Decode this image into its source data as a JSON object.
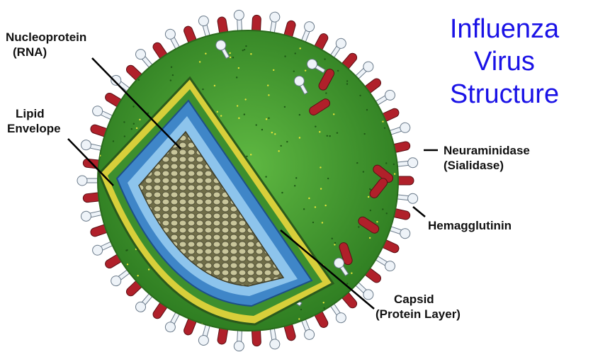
{
  "title": {
    "line1": "Influenza",
    "line2": "Virus",
    "line3": "Structure"
  },
  "labels": {
    "nucleoprotein": {
      "line1": "Nucleoprotein",
      "line2": "(RNA)"
    },
    "lipid_envelope": {
      "line1": "Lipid",
      "line2": "Envelope"
    },
    "neuraminidase": {
      "line1": "Neuraminidase",
      "line2": "(Sialidase)"
    },
    "hemagglutinin": {
      "line1": "Hemagglutinin"
    },
    "capsid": {
      "line1": "Capsid",
      "line2": "(Protein Layer)"
    }
  },
  "colors": {
    "title": "#1a12e6",
    "envelope_green": "#3f9a2c",
    "hemagglutinin_red": "#b0202a",
    "neuraminidase_white": "#eef3f8",
    "capsid_blue": "#3f86c8",
    "capsid_light_blue": "#8dc4ec",
    "matrix_yellow": "#d8cf3a",
    "nucleoprotein_olive": "#8c8a5c"
  }
}
